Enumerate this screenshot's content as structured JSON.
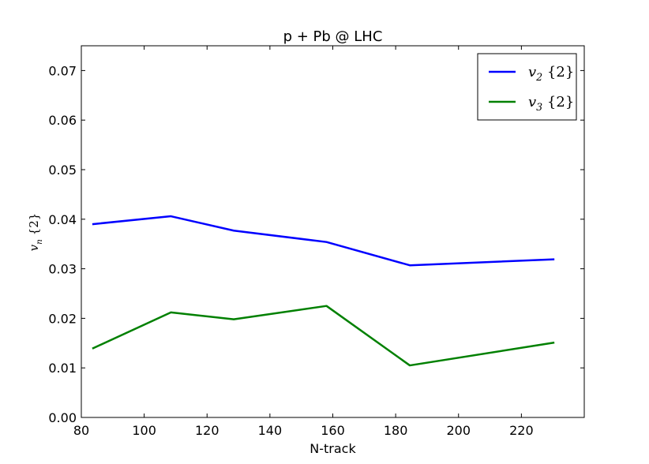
{
  "chart_data": {
    "type": "line",
    "title": "p + Pb @ LHC",
    "xlabel": "N-track",
    "ylabel": "v_n{2}",
    "xlim": [
      80,
      240
    ],
    "ylim": [
      0,
      0.075
    ],
    "xticks": [
      80,
      100,
      120,
      140,
      160,
      180,
      200,
      220
    ],
    "xtick_labels": [
      "80",
      "100",
      "120",
      "140",
      "160",
      "180",
      "200",
      "220"
    ],
    "yticks": [
      0.0,
      0.01,
      0.02,
      0.03,
      0.04,
      0.05,
      0.06,
      0.07
    ],
    "ytick_labels": [
      "0.00",
      "0.01",
      "0.02",
      "0.03",
      "0.04",
      "0.05",
      "0.06",
      "0.07"
    ],
    "legend_position": "top-right",
    "grid": false,
    "series": [
      {
        "name": "v_2{2}",
        "color": "#0000ff",
        "x": [
          83.5,
          108.5,
          128.5,
          158,
          184.5,
          230.5
        ],
        "y": [
          0.039,
          0.0406,
          0.0377,
          0.0354,
          0.0307,
          0.0319
        ]
      },
      {
        "name": "v_3{2}",
        "color": "#008000",
        "x": [
          83.5,
          108.5,
          128.5,
          158,
          184.5,
          230.5
        ],
        "y": [
          0.0139,
          0.0212,
          0.0198,
          0.0225,
          0.0105,
          0.0151
        ]
      }
    ]
  }
}
